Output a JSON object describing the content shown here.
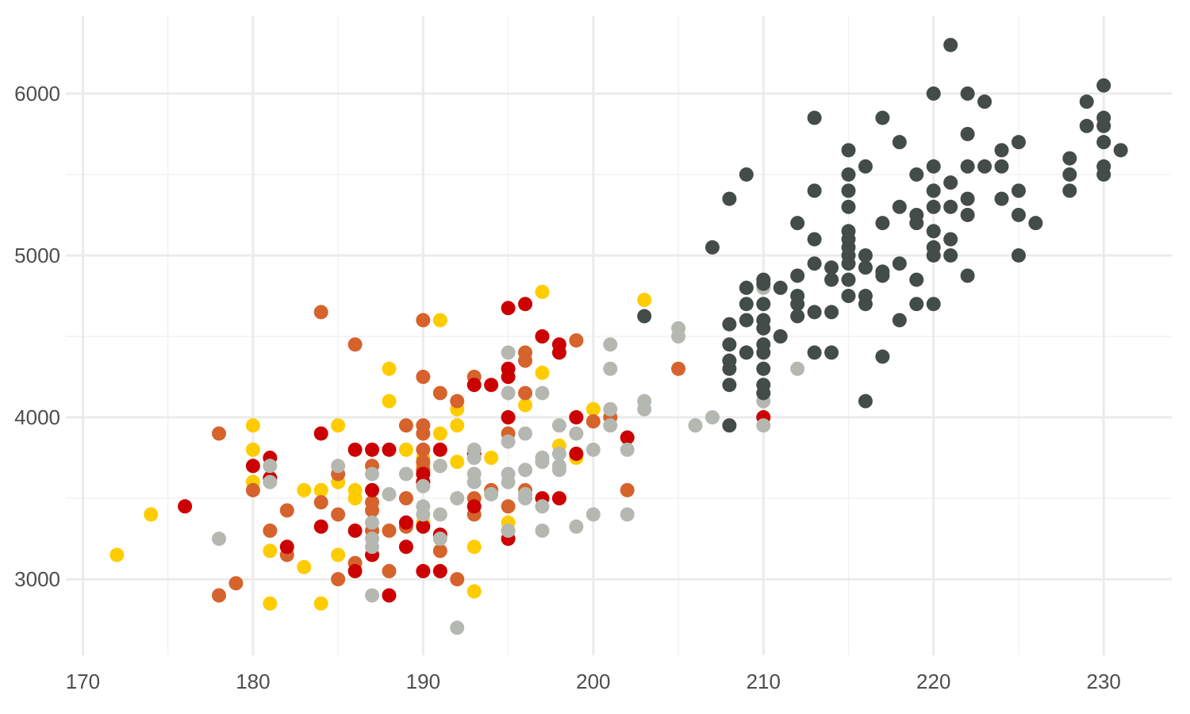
{
  "chart_data": {
    "type": "scatter",
    "title": "",
    "xlabel": "",
    "ylabel": "",
    "xlim": [
      169,
      234
    ],
    "ylim": [
      2530,
      6480
    ],
    "x_ticks": [
      170,
      180,
      190,
      200,
      210,
      220,
      230
    ],
    "y_ticks": [
      3000,
      4000,
      5000,
      6000
    ],
    "x_tick_labels": [
      "170",
      "180",
      "190",
      "200",
      "210",
      "220",
      "230"
    ],
    "y_tick_labels": [
      "3000",
      "4000",
      "5000",
      "6000"
    ],
    "grid": true,
    "legend": "none",
    "series": [
      {
        "color": "#FFCC00",
        "points": [
          [
            172,
            3150
          ],
          [
            174,
            3400
          ],
          [
            180,
            3950
          ],
          [
            180,
            3800
          ],
          [
            180,
            3600
          ],
          [
            181,
            3175
          ],
          [
            181,
            2850
          ],
          [
            183,
            3550
          ],
          [
            183,
            3075
          ],
          [
            184,
            3550
          ],
          [
            184,
            2850
          ],
          [
            185,
            3950
          ],
          [
            185,
            3600
          ],
          [
            185,
            3150
          ],
          [
            186,
            3550
          ],
          [
            186,
            3500
          ],
          [
            188,
            4300
          ],
          [
            188,
            4100
          ],
          [
            189,
            3800
          ],
          [
            190,
            3750
          ],
          [
            190,
            3350
          ],
          [
            190,
            3700
          ],
          [
            191,
            4600
          ],
          [
            191,
            3900
          ],
          [
            191,
            3700
          ],
          [
            192,
            4050
          ],
          [
            192,
            3950
          ],
          [
            192,
            3725
          ],
          [
            193,
            3200
          ],
          [
            193,
            2925
          ],
          [
            194,
            3750
          ],
          [
            195,
            3350
          ],
          [
            195,
            3300
          ],
          [
            197,
            4775
          ],
          [
            197,
            4275
          ],
          [
            196,
            4075
          ],
          [
            198,
            3825
          ],
          [
            199,
            3750
          ],
          [
            200,
            4050
          ],
          [
            203,
            4725
          ]
        ]
      },
      {
        "color": "#D6622C",
        "points": [
          [
            178,
            3900
          ],
          [
            178,
            2900
          ],
          [
            179,
            2975
          ],
          [
            180,
            3550
          ],
          [
            181,
            3300
          ],
          [
            182,
            3425
          ],
          [
            182,
            3150
          ],
          [
            184,
            4650
          ],
          [
            184,
            3475
          ],
          [
            185,
            3650
          ],
          [
            185,
            3400
          ],
          [
            185,
            3000
          ],
          [
            186,
            4450
          ],
          [
            186,
            3100
          ],
          [
            187,
            3700
          ],
          [
            187,
            3475
          ],
          [
            187,
            3425
          ],
          [
            187,
            3300
          ],
          [
            188,
            3300
          ],
          [
            188,
            3050
          ],
          [
            189,
            3950
          ],
          [
            189,
            3500
          ],
          [
            189,
            3325
          ],
          [
            190,
            4600
          ],
          [
            190,
            4250
          ],
          [
            190,
            3950
          ],
          [
            190,
            3900
          ],
          [
            190,
            3800
          ],
          [
            190,
            3725
          ],
          [
            190,
            3675
          ],
          [
            191,
            4150
          ],
          [
            191,
            3175
          ],
          [
            192,
            4100
          ],
          [
            192,
            3000
          ],
          [
            193,
            4250
          ],
          [
            193,
            3500
          ],
          [
            193,
            3400
          ],
          [
            194,
            3550
          ],
          [
            195,
            3900
          ],
          [
            195,
            3450
          ],
          [
            196,
            4400
          ],
          [
            196,
            4350
          ],
          [
            196,
            4150
          ],
          [
            196,
            3550
          ],
          [
            199,
            4475
          ],
          [
            200,
            3975
          ],
          [
            201,
            4000
          ],
          [
            202,
            3550
          ],
          [
            205,
            4300
          ]
        ]
      },
      {
        "color": "#CC0000",
        "points": [
          [
            176,
            3450
          ],
          [
            180,
            3700
          ],
          [
            181,
            3750
          ],
          [
            181,
            3625
          ],
          [
            182,
            3200
          ],
          [
            184,
            3900
          ],
          [
            184,
            3325
          ],
          [
            186,
            3800
          ],
          [
            186,
            3300
          ],
          [
            186,
            3050
          ],
          [
            187,
            3800
          ],
          [
            187,
            3550
          ],
          [
            187,
            3150
          ],
          [
            188,
            3800
          ],
          [
            188,
            2900
          ],
          [
            189,
            3350
          ],
          [
            189,
            3200
          ],
          [
            190,
            3650
          ],
          [
            190,
            3600
          ],
          [
            190,
            3325
          ],
          [
            190,
            3050
          ],
          [
            191,
            3800
          ],
          [
            191,
            3275
          ],
          [
            191,
            3050
          ],
          [
            193,
            4200
          ],
          [
            193,
            3450
          ],
          [
            193,
            3775
          ],
          [
            194,
            4200
          ],
          [
            195,
            4675
          ],
          [
            195,
            4300
          ],
          [
            195,
            4250
          ],
          [
            195,
            4000
          ],
          [
            195,
            3250
          ],
          [
            196,
            4700
          ],
          [
            197,
            4500
          ],
          [
            197,
            3500
          ],
          [
            198,
            4450
          ],
          [
            198,
            4400
          ],
          [
            198,
            3500
          ],
          [
            199,
            4000
          ],
          [
            199,
            3775
          ],
          [
            202,
            3875
          ],
          [
            210,
            4000
          ]
        ]
      },
      {
        "color": "#B4B8B1",
        "points": [
          [
            178,
            3250
          ],
          [
            181,
            3700
          ],
          [
            181,
            3600
          ],
          [
            185,
            3700
          ],
          [
            187,
            3650
          ],
          [
            187,
            3350
          ],
          [
            187,
            3250
          ],
          [
            187,
            3200
          ],
          [
            187,
            2900
          ],
          [
            188,
            3525
          ],
          [
            189,
            3650
          ],
          [
            190,
            3575
          ],
          [
            190,
            3450
          ],
          [
            190,
            3400
          ],
          [
            191,
            3700
          ],
          [
            191,
            3400
          ],
          [
            191,
            3250
          ],
          [
            192,
            3500
          ],
          [
            192,
            2700
          ],
          [
            193,
            3800
          ],
          [
            193,
            3750
          ],
          [
            193,
            3650
          ],
          [
            193,
            3600
          ],
          [
            194,
            3525
          ],
          [
            195,
            4400
          ],
          [
            195,
            4150
          ],
          [
            195,
            3850
          ],
          [
            195,
            3650
          ],
          [
            195,
            3600
          ],
          [
            195,
            3300
          ],
          [
            196,
            3900
          ],
          [
            196,
            3675
          ],
          [
            196,
            3525
          ],
          [
            196,
            3500
          ],
          [
            197,
            4150
          ],
          [
            197,
            3750
          ],
          [
            197,
            3725
          ],
          [
            197,
            3450
          ],
          [
            197,
            3300
          ],
          [
            198,
            3950
          ],
          [
            198,
            3775
          ],
          [
            198,
            3700
          ],
          [
            198,
            3675
          ],
          [
            199,
            3900
          ],
          [
            199,
            3325
          ],
          [
            200,
            3800
          ],
          [
            200,
            3400
          ],
          [
            201,
            4450
          ],
          [
            201,
            4300
          ],
          [
            201,
            4050
          ],
          [
            201,
            3950
          ],
          [
            202,
            3800
          ],
          [
            202,
            3400
          ],
          [
            203,
            4100
          ],
          [
            203,
            4050
          ],
          [
            205,
            4550
          ],
          [
            205,
            4500
          ],
          [
            206,
            3950
          ],
          [
            207,
            4000
          ],
          [
            210,
            4800
          ],
          [
            210,
            4100
          ],
          [
            210,
            3950
          ],
          [
            212,
            4300
          ]
        ]
      },
      {
        "color": "#444C4A",
        "points": [
          [
            203,
            4625
          ],
          [
            207,
            5050
          ],
          [
            208,
            5350
          ],
          [
            208,
            4575
          ],
          [
            208,
            4450
          ],
          [
            208,
            4350
          ],
          [
            208,
            4300
          ],
          [
            208,
            4200
          ],
          [
            208,
            3950
          ],
          [
            209,
            5500
          ],
          [
            209,
            4800
          ],
          [
            209,
            4700
          ],
          [
            209,
            4600
          ],
          [
            209,
            4400
          ],
          [
            210,
            4850
          ],
          [
            210,
            4825
          ],
          [
            210,
            4700
          ],
          [
            210,
            4600
          ],
          [
            210,
            4550
          ],
          [
            210,
            4450
          ],
          [
            210,
            4400
          ],
          [
            210,
            4300
          ],
          [
            210,
            4200
          ],
          [
            210,
            4150
          ],
          [
            211,
            4800
          ],
          [
            211,
            4500
          ],
          [
            212,
            5200
          ],
          [
            212,
            4875
          ],
          [
            212,
            4750
          ],
          [
            212,
            4700
          ],
          [
            212,
            4625
          ],
          [
            213,
            5850
          ],
          [
            213,
            5400
          ],
          [
            213,
            5100
          ],
          [
            213,
            4950
          ],
          [
            213,
            4650
          ],
          [
            213,
            4400
          ],
          [
            214,
            4925
          ],
          [
            214,
            4850
          ],
          [
            214,
            4650
          ],
          [
            214,
            4400
          ],
          [
            215,
            5650
          ],
          [
            215,
            5500
          ],
          [
            215,
            5400
          ],
          [
            215,
            5300
          ],
          [
            215,
            5150
          ],
          [
            215,
            5100
          ],
          [
            215,
            5050
          ],
          [
            215,
            5000
          ],
          [
            215,
            4950
          ],
          [
            215,
            4850
          ],
          [
            215,
            4750
          ],
          [
            216,
            5550
          ],
          [
            216,
            5000
          ],
          [
            216,
            4925
          ],
          [
            216,
            4750
          ],
          [
            216,
            4700
          ],
          [
            216,
            4100
          ],
          [
            217,
            5850
          ],
          [
            217,
            5200
          ],
          [
            217,
            4900
          ],
          [
            217,
            4875
          ],
          [
            217,
            4375
          ],
          [
            218,
            5700
          ],
          [
            218,
            5300
          ],
          [
            218,
            4950
          ],
          [
            218,
            4600
          ],
          [
            219,
            5500
          ],
          [
            219,
            5250
          ],
          [
            219,
            5200
          ],
          [
            219,
            4850
          ],
          [
            219,
            4700
          ],
          [
            220,
            6000
          ],
          [
            220,
            5550
          ],
          [
            220,
            5400
          ],
          [
            220,
            5300
          ],
          [
            220,
            5150
          ],
          [
            220,
            5050
          ],
          [
            220,
            5000
          ],
          [
            220,
            4700
          ],
          [
            221,
            6300
          ],
          [
            221,
            5450
          ],
          [
            221,
            5300
          ],
          [
            221,
            5100
          ],
          [
            221,
            5000
          ],
          [
            222,
            6000
          ],
          [
            222,
            5750
          ],
          [
            222,
            5550
          ],
          [
            222,
            5350
          ],
          [
            222,
            5250
          ],
          [
            222,
            4875
          ],
          [
            223,
            5950
          ],
          [
            223,
            5550
          ],
          [
            224,
            5650
          ],
          [
            224,
            5550
          ],
          [
            224,
            5350
          ],
          [
            225,
            5700
          ],
          [
            225,
            5400
          ],
          [
            225,
            5250
          ],
          [
            225,
            5000
          ],
          [
            226,
            5200
          ],
          [
            228,
            5600
          ],
          [
            228,
            5500
          ],
          [
            228,
            5400
          ],
          [
            229,
            5950
          ],
          [
            229,
            5800
          ],
          [
            230,
            6050
          ],
          [
            230,
            5850
          ],
          [
            230,
            5800
          ],
          [
            230,
            5700
          ],
          [
            230,
            5550
          ],
          [
            230,
            5500
          ],
          [
            231,
            5650
          ]
        ]
      }
    ]
  }
}
